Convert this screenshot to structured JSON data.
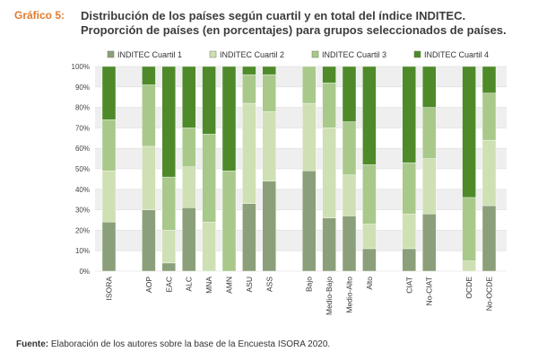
{
  "header": {
    "figure_label": "Gráfico 5:",
    "title_line1": "Distribución de los países según cuartil y en total del índice INDITEC.",
    "title_line2": "Proporción de países (en porcentajes) para grupos seleccionados de países."
  },
  "footer": {
    "source_label": "Fuente:",
    "source_text": "Elaboración de los autores sobre la base de la Encuesta ISORA 2020."
  },
  "colors": {
    "q1": "#8ba07a",
    "q2": "#cfe0b4",
    "q3": "#a9c98a",
    "q4": "#4f8a2a",
    "band": "#efefef"
  },
  "chart_data": {
    "type": "bar",
    "stacked": true,
    "ylim": [
      0,
      100
    ],
    "yticks": [
      "0%",
      "10%",
      "20%",
      "30%",
      "40%",
      "50%",
      "60%",
      "70%",
      "80%",
      "90%",
      "100%"
    ],
    "groups": [
      [
        "ISORA"
      ],
      [
        "AOP",
        "EAC",
        "ALC",
        "MNA",
        "AMN",
        "ASU",
        "ASS"
      ],
      [
        "Bajo",
        "Medio-Bajo",
        "Medio-Alto",
        "Alto"
      ],
      [
        "CIAT",
        "No-CIAT"
      ],
      [
        "OCDE",
        "No-OCDE"
      ]
    ],
    "categories": [
      "ISORA",
      "AOP",
      "EAC",
      "ALC",
      "MNA",
      "AMN",
      "ASU",
      "ASS",
      "Bajo",
      "Medio-Bajo",
      "Medio-Alto",
      "Alto",
      "CIAT",
      "No-CIAT",
      "OCDE",
      "No-OCDE"
    ],
    "series": [
      {
        "name": "INDITEC Cuartil 1",
        "values": [
          24,
          30,
          4,
          31,
          0,
          0,
          33,
          44,
          49,
          26,
          27,
          11,
          11,
          28,
          0,
          32
        ]
      },
      {
        "name": "INDITEC Cuartil 2",
        "values": [
          25,
          31,
          16,
          20,
          24,
          0,
          49,
          34,
          33,
          44,
          20,
          12,
          17,
          27,
          5,
          32
        ]
      },
      {
        "name": "INDITEC Cuartil 3",
        "values": [
          25,
          30,
          26,
          19,
          43,
          49,
          14,
          18,
          18,
          22,
          26,
          29,
          25,
          25,
          31,
          23
        ]
      },
      {
        "name": "INDITEC Cuartil 4",
        "values": [
          26,
          9,
          54,
          30,
          33,
          51,
          4,
          4,
          0,
          8,
          27,
          48,
          47,
          20,
          64,
          13
        ]
      }
    ],
    "legend_position": "top"
  }
}
